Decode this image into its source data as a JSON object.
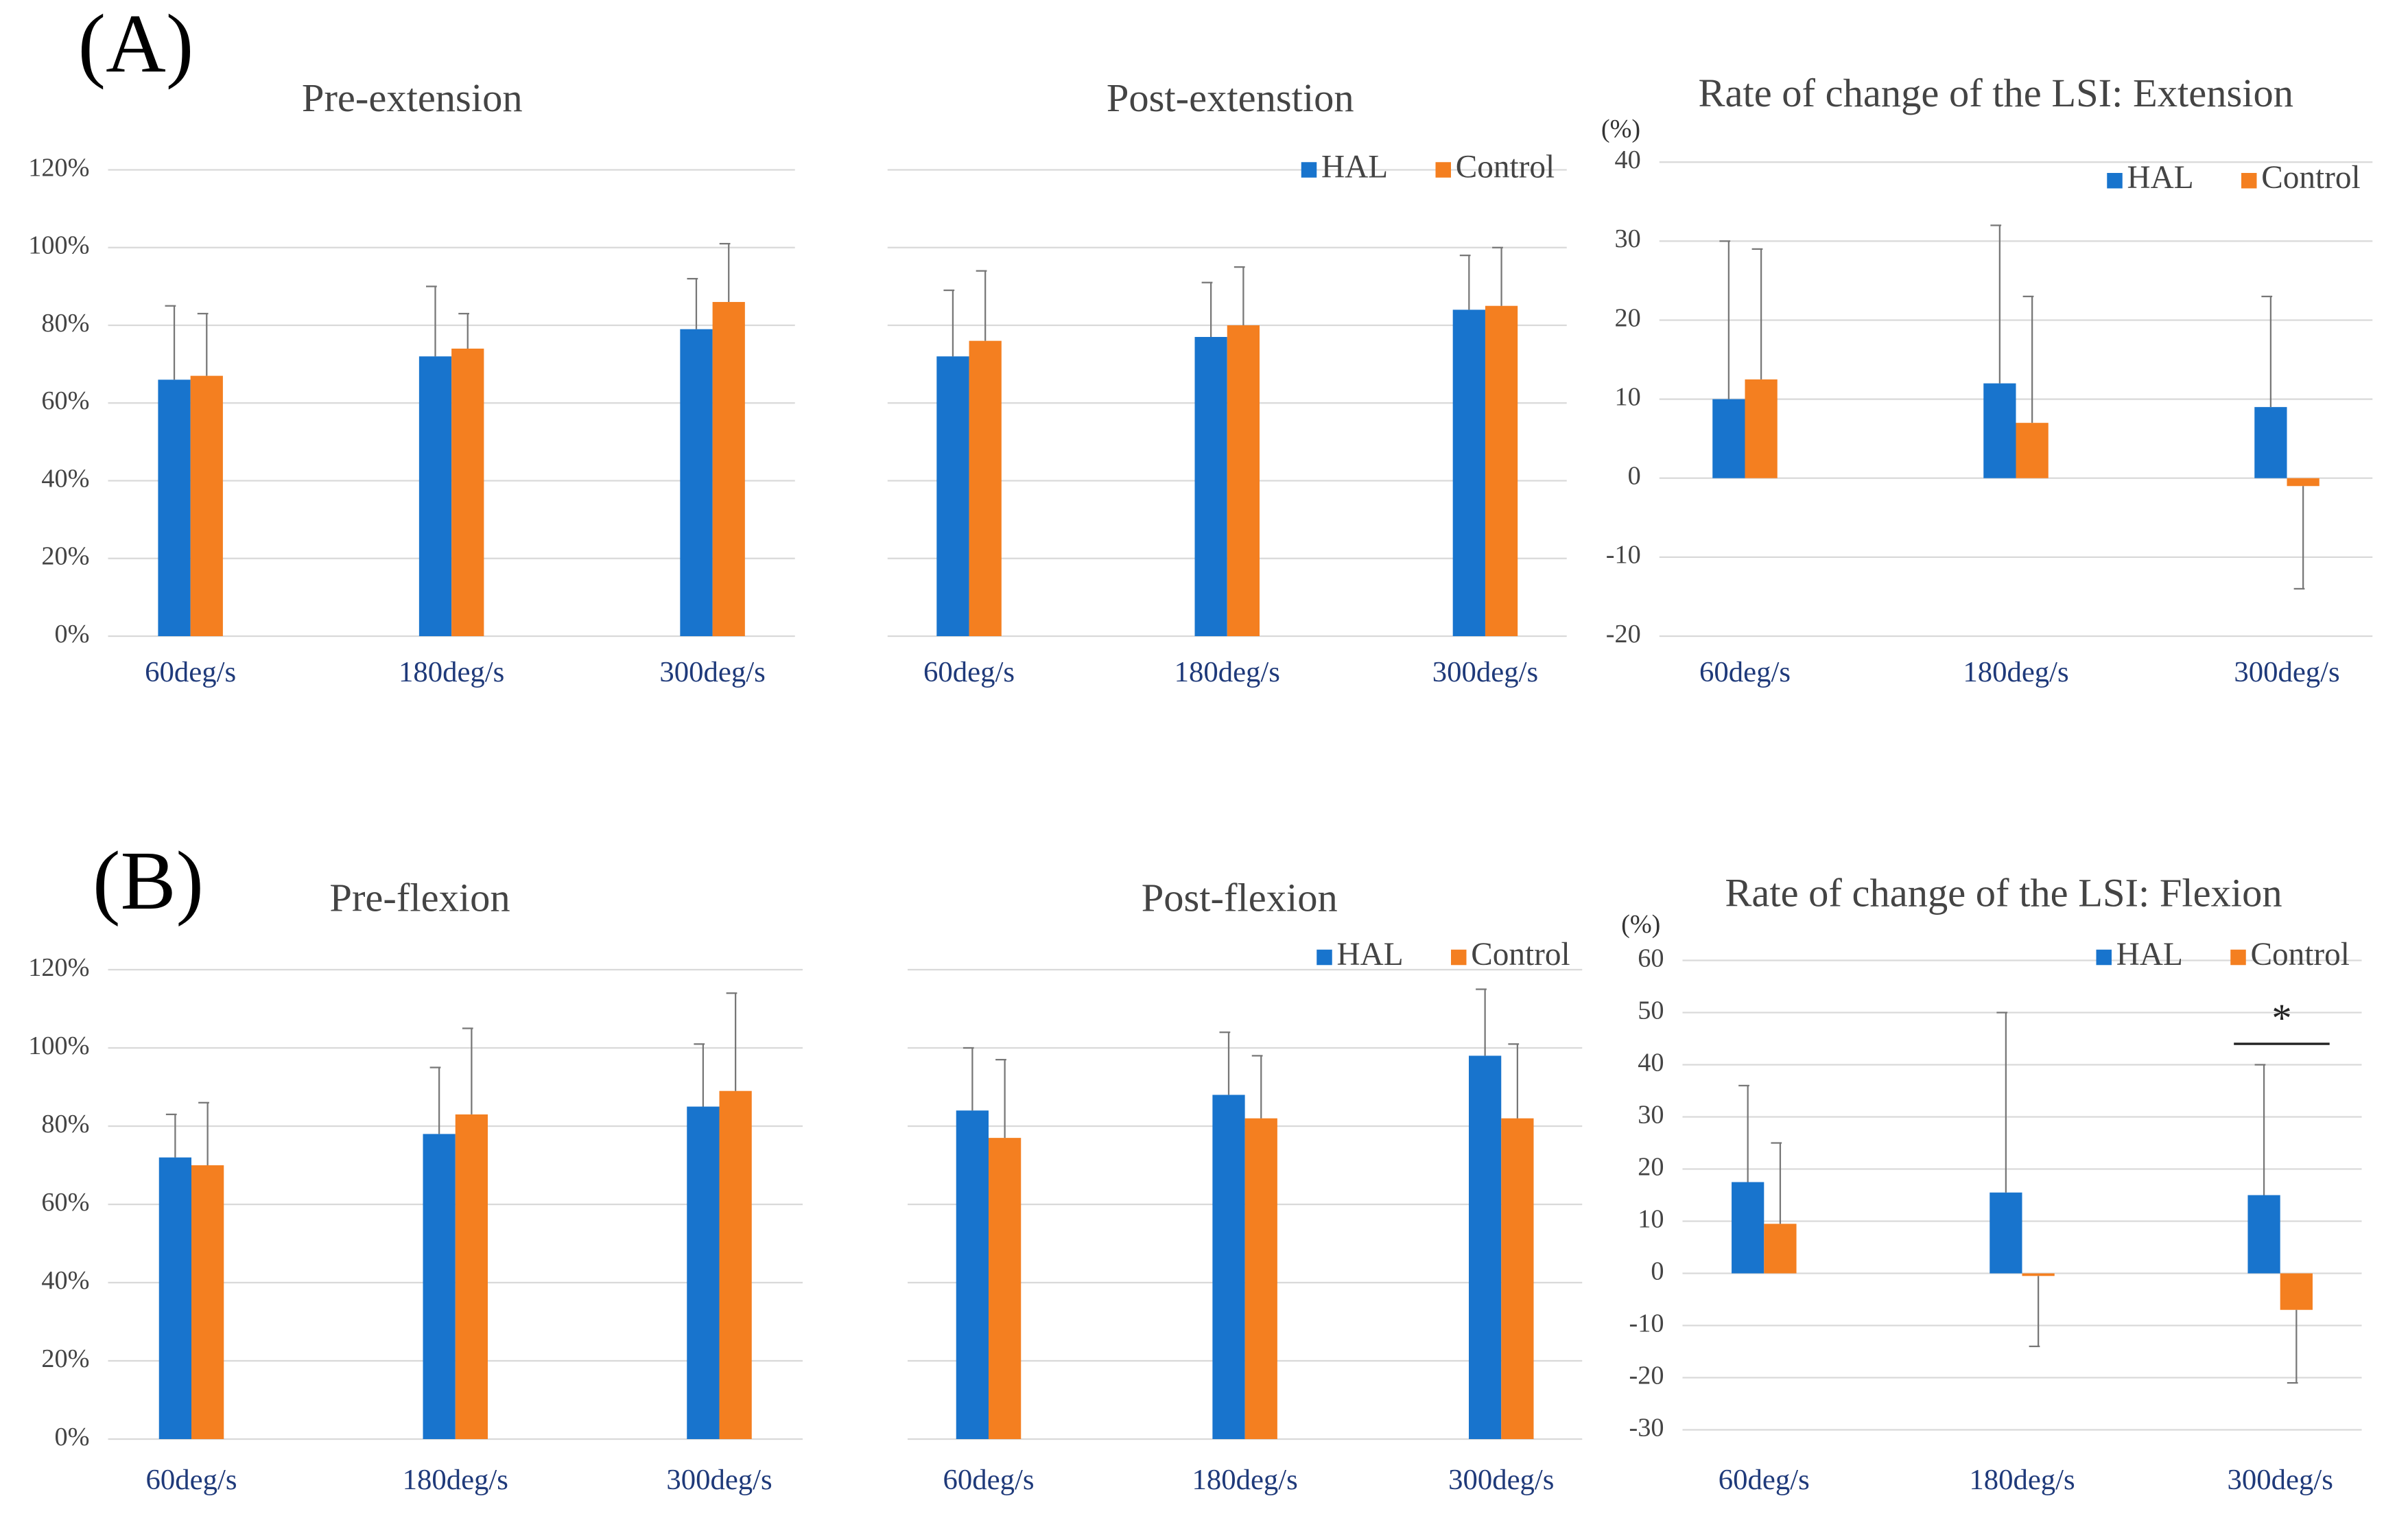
{
  "panels": [
    "(A)",
    "(B)"
  ],
  "chart_data": [
    {
      "type": "bar",
      "title": "Pre-extension",
      "categories": [
        "60deg/s",
        "180deg/s",
        "300deg/s"
      ],
      "series": [
        {
          "name": "HAL",
          "color": "#1874cd",
          "values": [
            66,
            72,
            79
          ],
          "errors": [
            19,
            18,
            13
          ]
        },
        {
          "name": "Control",
          "color": "#f47f20",
          "values": [
            67,
            74,
            86
          ],
          "errors": [
            16,
            9,
            15
          ]
        }
      ],
      "ylim": [
        0,
        120
      ],
      "yticks": [
        {
          "value": 0,
          "label": "0%"
        },
        {
          "value": 20,
          "label": "20%"
        },
        {
          "value": 40,
          "label": "40%"
        },
        {
          "value": 60,
          "label": "60%"
        },
        {
          "value": 80,
          "label": "80%"
        },
        {
          "value": 100,
          "label": "100%"
        },
        {
          "value": 120,
          "label": "120%"
        }
      ],
      "grid": true,
      "legend": false
    },
    {
      "type": "bar",
      "title": "Post-extenstion",
      "categories": [
        "60deg/s",
        "180deg/s",
        "300deg/s"
      ],
      "series": [
        {
          "name": "HAL",
          "color": "#1874cd",
          "values": [
            72,
            77,
            84
          ],
          "errors": [
            17,
            14,
            14
          ]
        },
        {
          "name": "Control",
          "color": "#f47f20",
          "values": [
            76,
            80,
            85
          ],
          "errors": [
            18,
            15,
            15
          ]
        }
      ],
      "ylim": [
        0,
        120
      ],
      "yticks": [
        0,
        20,
        40,
        60,
        80,
        100,
        120
      ],
      "ytick_labels": false,
      "grid": true,
      "legend": "upper right"
    },
    {
      "type": "bar",
      "title": "Rate of change of the LSI: Extension",
      "ylabel": "(%)",
      "categories": [
        "60deg/s",
        "180deg/s",
        "300deg/s"
      ],
      "series": [
        {
          "name": "HAL",
          "color": "#1874cd",
          "values": [
            10,
            12,
            9
          ],
          "errors": [
            20,
            20,
            14
          ]
        },
        {
          "name": "Control",
          "color": "#f47f20",
          "values": [
            12.5,
            7,
            -1
          ],
          "errors": [
            16.5,
            16,
            13
          ]
        }
      ],
      "ylim": [
        -20,
        40
      ],
      "yticks": [
        -20,
        -10,
        0,
        10,
        20,
        30,
        40
      ],
      "grid": true,
      "legend": "upper right"
    },
    {
      "type": "bar",
      "title": "Pre-flexion",
      "categories": [
        "60deg/s",
        "180deg/s",
        "300deg/s"
      ],
      "series": [
        {
          "name": "HAL",
          "color": "#1874cd",
          "values": [
            72,
            78,
            85
          ],
          "errors": [
            11,
            17,
            16
          ]
        },
        {
          "name": "Control",
          "color": "#f47f20",
          "values": [
            70,
            83,
            89
          ],
          "errors": [
            16,
            22,
            25
          ]
        }
      ],
      "ylim": [
        0,
        120
      ],
      "yticks": [
        {
          "value": 0,
          "label": "0%"
        },
        {
          "value": 20,
          "label": "20%"
        },
        {
          "value": 40,
          "label": "40%"
        },
        {
          "value": 60,
          "label": "60%"
        },
        {
          "value": 80,
          "label": "80%"
        },
        {
          "value": 100,
          "label": "100%"
        },
        {
          "value": 120,
          "label": "120%"
        }
      ],
      "grid": true,
      "legend": false
    },
    {
      "type": "bar",
      "title": "Post-flexion",
      "categories": [
        "60deg/s",
        "180deg/s",
        "300deg/s"
      ],
      "series": [
        {
          "name": "HAL",
          "color": "#1874cd",
          "values": [
            84,
            88,
            98
          ],
          "errors": [
            16,
            16,
            17
          ]
        },
        {
          "name": "Control",
          "color": "#f47f20",
          "values": [
            77,
            82,
            82
          ],
          "errors": [
            20,
            16,
            19
          ]
        }
      ],
      "ylim": [
        0,
        120
      ],
      "yticks": [
        0,
        20,
        40,
        60,
        80,
        100,
        120
      ],
      "ytick_labels": false,
      "grid": true,
      "legend": "upper right"
    },
    {
      "type": "bar",
      "title": "Rate of change of the LSI: Flexion",
      "ylabel": "(%)",
      "categories": [
        "60deg/s",
        "180deg/s",
        "300deg/s"
      ],
      "series": [
        {
          "name": "HAL",
          "color": "#1874cd",
          "values": [
            17.5,
            15.5,
            15
          ],
          "errors": [
            18.5,
            34.5,
            25
          ]
        },
        {
          "name": "Control",
          "color": "#f47f20",
          "values": [
            9.5,
            -0.5,
            -7
          ],
          "errors": [
            15.5,
            13.5,
            14
          ]
        }
      ],
      "ylim": [
        -30,
        60
      ],
      "yticks": [
        -30,
        -20,
        -10,
        0,
        10,
        20,
        30,
        40,
        50,
        60
      ],
      "grid": true,
      "legend": "upper right",
      "annotations": [
        {
          "text": "*"
        }
      ]
    }
  ]
}
